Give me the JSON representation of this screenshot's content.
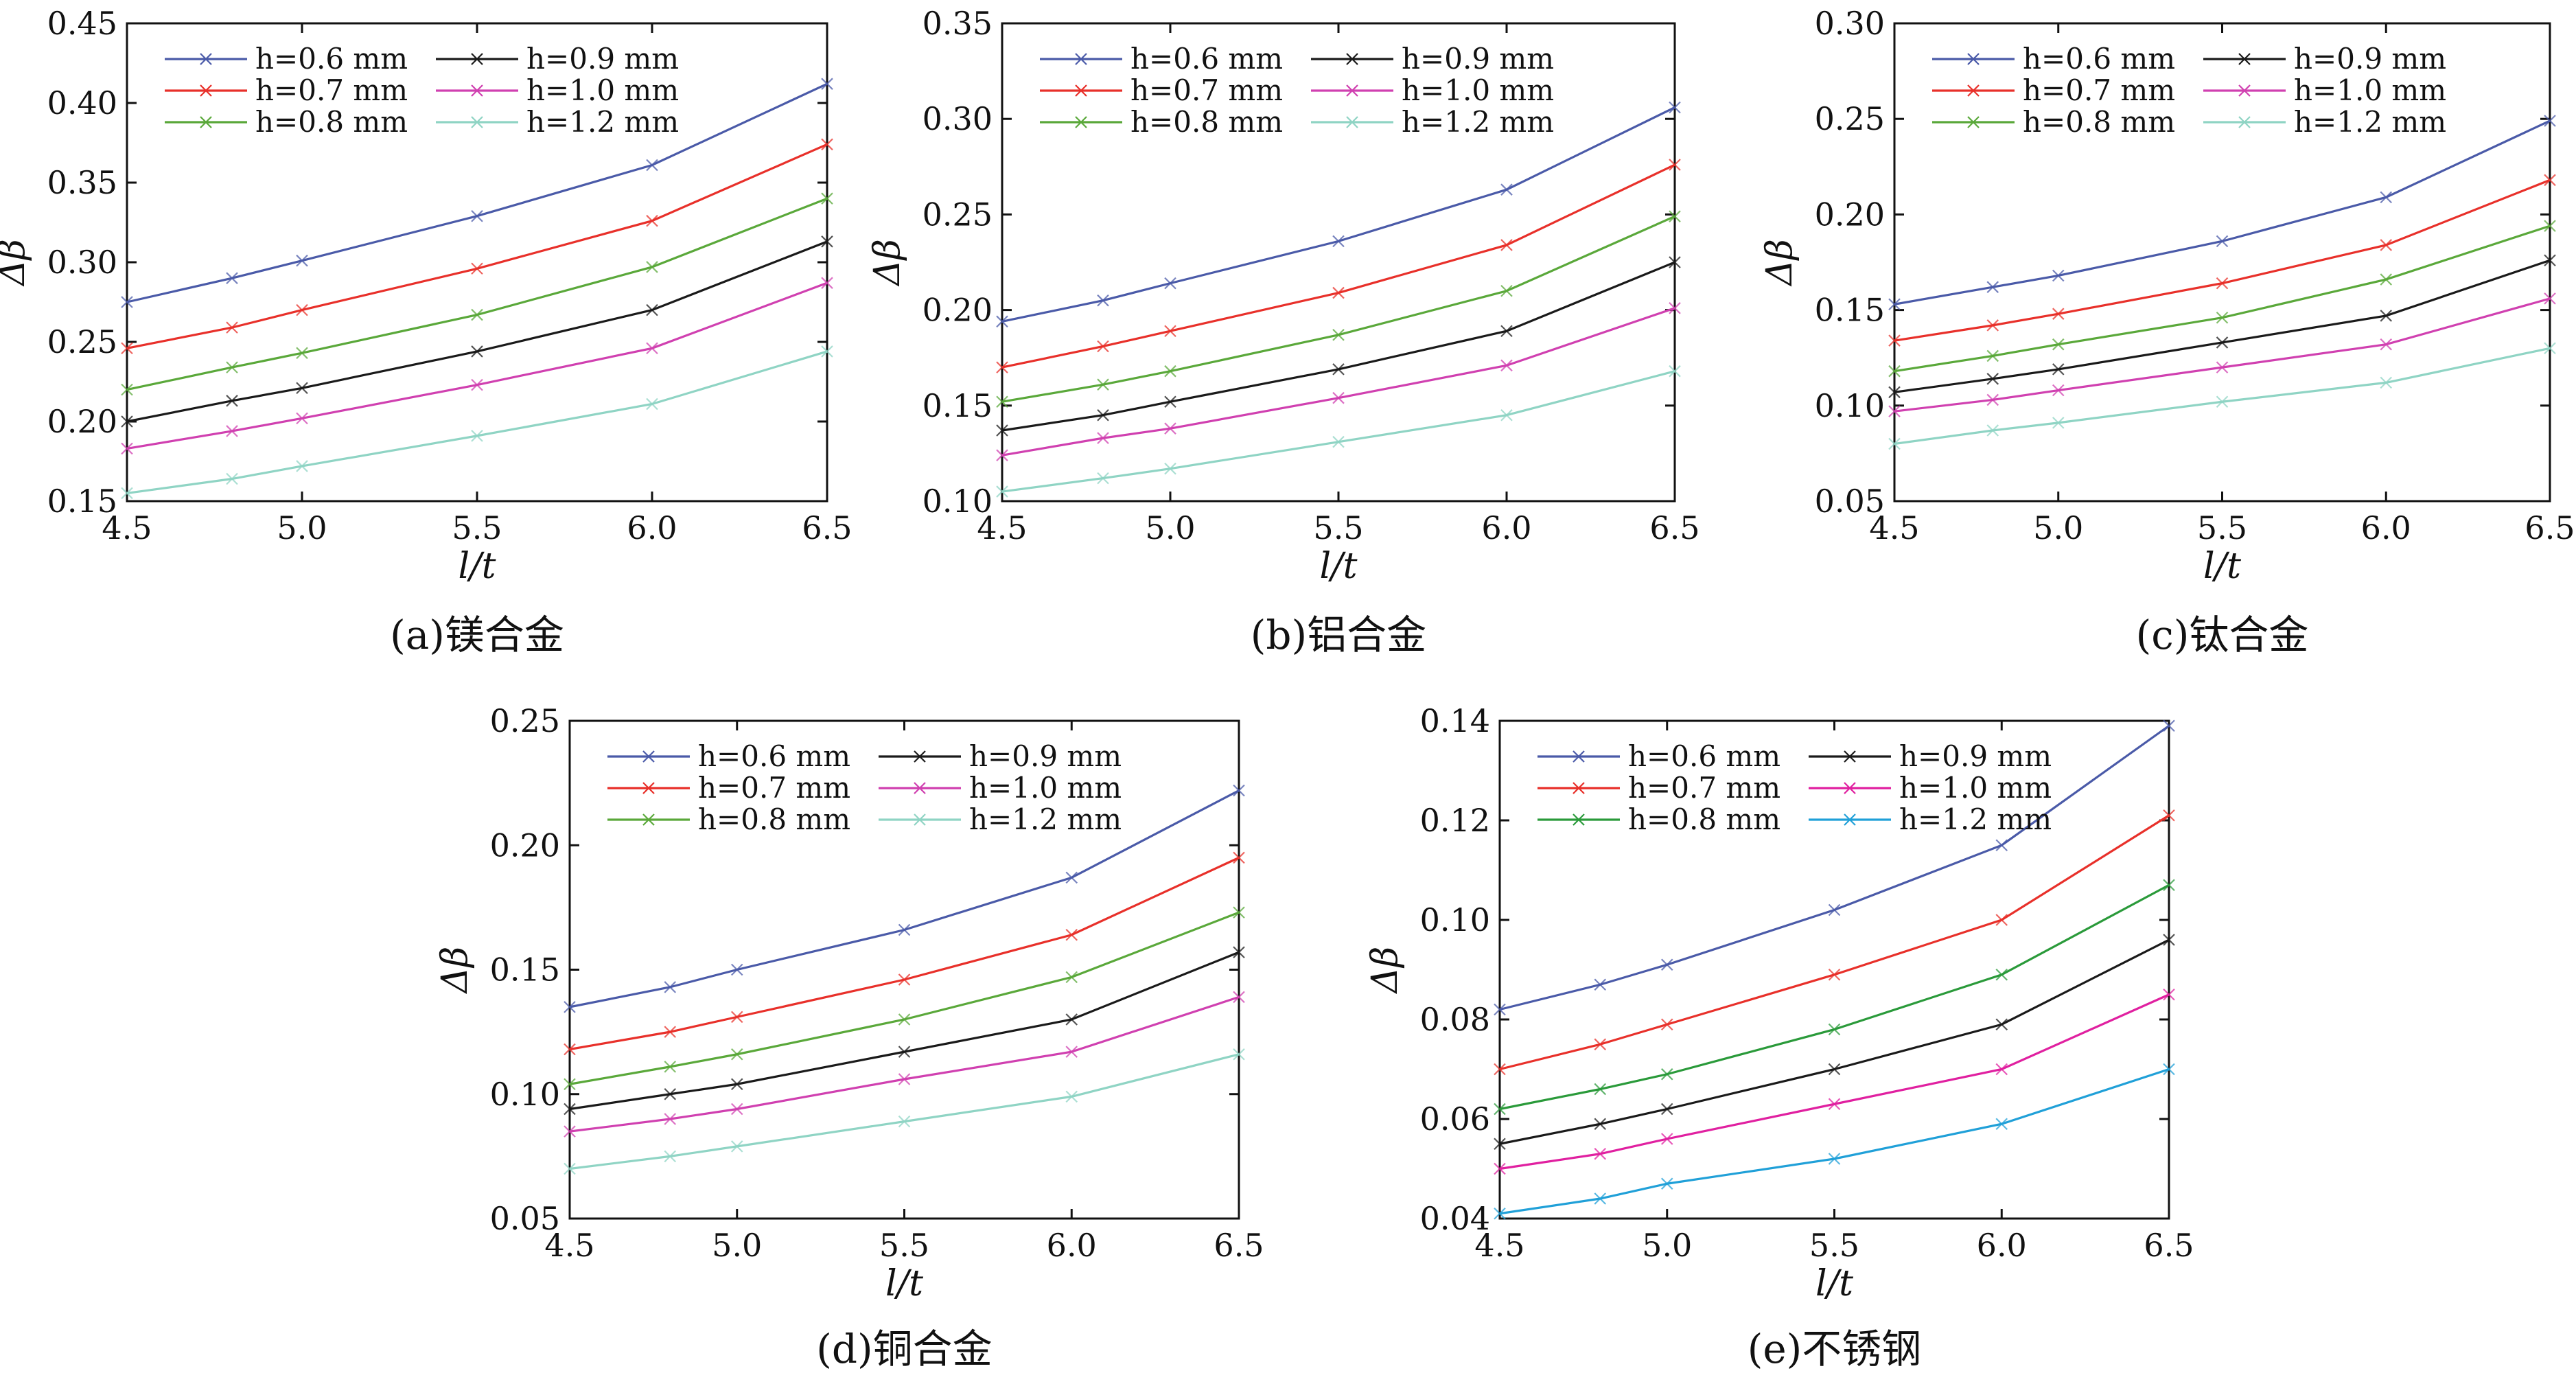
{
  "chart_data": [
    {
      "type": "line",
      "caption": "(a)镁合金",
      "xlabel": "l/t",
      "ylabel": "Δβ",
      "xlim": [
        4.5,
        6.5
      ],
      "ylim": [
        0.15,
        0.45
      ],
      "xticks": [
        "4.5",
        "5.0",
        "5.5",
        "6.0",
        "6.5"
      ],
      "yticks": [
        "0.15",
        "0.20",
        "0.25",
        "0.30",
        "0.35",
        "0.40",
        "0.45"
      ],
      "legend_position": "top-left",
      "x": [
        4.5,
        4.8,
        5.0,
        5.5,
        6.0,
        6.5
      ],
      "series": [
        {
          "name": "h=0.6 mm",
          "color": "#4a5aa8",
          "values": [
            0.275,
            0.29,
            0.301,
            0.329,
            0.361,
            0.412
          ]
        },
        {
          "name": "h=0.7 mm",
          "color": "#e8302a",
          "values": [
            0.246,
            0.259,
            0.27,
            0.296,
            0.326,
            0.374
          ]
        },
        {
          "name": "h=0.8 mm",
          "color": "#5aa83a",
          "values": [
            0.22,
            0.234,
            0.243,
            0.267,
            0.297,
            0.34
          ]
        },
        {
          "name": "h=0.9 mm",
          "color": "#1a1a1a",
          "values": [
            0.2,
            0.213,
            0.221,
            0.244,
            0.27,
            0.313
          ]
        },
        {
          "name": "h=1.0 mm",
          "color": "#d040b0",
          "values": [
            0.183,
            0.194,
            0.202,
            0.223,
            0.246,
            0.287
          ]
        },
        {
          "name": "h=1.2 mm",
          "color": "#8fd4c4",
          "values": [
            0.155,
            0.164,
            0.172,
            0.191,
            0.211,
            0.244
          ]
        }
      ]
    },
    {
      "type": "line",
      "caption": "(b)铝合金",
      "xlabel": "l/t",
      "ylabel": "Δβ",
      "xlim": [
        4.5,
        6.5
      ],
      "ylim": [
        0.1,
        0.35
      ],
      "xticks": [
        "4.5",
        "5.0",
        "5.5",
        "6.0",
        "6.5"
      ],
      "yticks": [
        "0.10",
        "0.15",
        "0.20",
        "0.25",
        "0.30",
        "0.35"
      ],
      "legend_position": "top-left",
      "x": [
        4.5,
        4.8,
        5.0,
        5.5,
        6.0,
        6.5
      ],
      "series": [
        {
          "name": "h=0.6 mm",
          "color": "#4a5aa8",
          "values": [
            0.194,
            0.205,
            0.214,
            0.236,
            0.263,
            0.306
          ]
        },
        {
          "name": "h=0.7 mm",
          "color": "#e8302a",
          "values": [
            0.17,
            0.181,
            0.189,
            0.209,
            0.234,
            0.276
          ]
        },
        {
          "name": "h=0.8 mm",
          "color": "#5aa83a",
          "values": [
            0.152,
            0.161,
            0.168,
            0.187,
            0.21,
            0.249
          ]
        },
        {
          "name": "h=0.9 mm",
          "color": "#1a1a1a",
          "values": [
            0.137,
            0.145,
            0.152,
            0.169,
            0.189,
            0.225
          ]
        },
        {
          "name": "h=1.0 mm",
          "color": "#d040b0",
          "values": [
            0.124,
            0.133,
            0.138,
            0.154,
            0.171,
            0.201
          ]
        },
        {
          "name": "h=1.2 mm",
          "color": "#8fd4c4",
          "values": [
            0.105,
            0.112,
            0.117,
            0.131,
            0.145,
            0.168
          ]
        }
      ]
    },
    {
      "type": "line",
      "caption": "(c)钛合金",
      "xlabel": "l/t",
      "ylabel": "Δβ",
      "xlim": [
        4.5,
        6.5
      ],
      "ylim": [
        0.05,
        0.3
      ],
      "xticks": [
        "4.5",
        "5.0",
        "5.5",
        "6.0",
        "6.5"
      ],
      "yticks": [
        "0.05",
        "0.10",
        "0.15",
        "0.20",
        "0.25",
        "0.30"
      ],
      "legend_position": "top-left",
      "x": [
        4.5,
        4.8,
        5.0,
        5.5,
        6.0,
        6.5
      ],
      "series": [
        {
          "name": "h=0.6 mm",
          "color": "#4a5aa8",
          "values": [
            0.153,
            0.162,
            0.168,
            0.186,
            0.209,
            0.249
          ]
        },
        {
          "name": "h=0.7 mm",
          "color": "#e8302a",
          "values": [
            0.134,
            0.142,
            0.148,
            0.164,
            0.184,
            0.218
          ]
        },
        {
          "name": "h=0.8 mm",
          "color": "#5aa83a",
          "values": [
            0.118,
            0.126,
            0.132,
            0.146,
            0.166,
            0.194
          ]
        },
        {
          "name": "h=0.9 mm",
          "color": "#1a1a1a",
          "values": [
            0.107,
            0.114,
            0.119,
            0.133,
            0.147,
            0.176
          ]
        },
        {
          "name": "h=1.0 mm",
          "color": "#d040b0",
          "values": [
            0.097,
            0.103,
            0.108,
            0.12,
            0.132,
            0.156
          ]
        },
        {
          "name": "h=1.2 mm",
          "color": "#8fd4c4",
          "values": [
            0.08,
            0.087,
            0.091,
            0.102,
            0.112,
            0.13
          ]
        }
      ]
    },
    {
      "type": "line",
      "caption": "(d)铜合金",
      "xlabel": "l/t",
      "ylabel": "Δβ",
      "xlim": [
        4.5,
        6.5
      ],
      "ylim": [
        0.05,
        0.25
      ],
      "xticks": [
        "4.5",
        "5.0",
        "5.5",
        "6.0",
        "6.5"
      ],
      "yticks": [
        "0.05",
        "0.10",
        "0.15",
        "0.20",
        "0.25"
      ],
      "legend_position": "top-left",
      "x": [
        4.5,
        4.8,
        5.0,
        5.5,
        6.0,
        6.5
      ],
      "series": [
        {
          "name": "h=0.6 mm",
          "color": "#4a5aa8",
          "values": [
            0.135,
            0.143,
            0.15,
            0.166,
            0.187,
            0.222
          ]
        },
        {
          "name": "h=0.7 mm",
          "color": "#e8302a",
          "values": [
            0.118,
            0.125,
            0.131,
            0.146,
            0.164,
            0.195
          ]
        },
        {
          "name": "h=0.8 mm",
          "color": "#5aa83a",
          "values": [
            0.104,
            0.111,
            0.116,
            0.13,
            0.147,
            0.173
          ]
        },
        {
          "name": "h=0.9 mm",
          "color": "#1a1a1a",
          "values": [
            0.094,
            0.1,
            0.104,
            0.117,
            0.13,
            0.157
          ]
        },
        {
          "name": "h=1.0 mm",
          "color": "#d040b0",
          "values": [
            0.085,
            0.09,
            0.094,
            0.106,
            0.117,
            0.139
          ]
        },
        {
          "name": "h=1.2 mm",
          "color": "#8fd4c4",
          "values": [
            0.07,
            0.075,
            0.079,
            0.089,
            0.099,
            0.116
          ]
        }
      ]
    },
    {
      "type": "line",
      "caption": "(e)不锈钢",
      "xlabel": "l/t",
      "ylabel": "Δβ",
      "xlim": [
        4.5,
        6.5
      ],
      "ylim": [
        0.04,
        0.14
      ],
      "xticks": [
        "4.5",
        "5.0",
        "5.5",
        "6.0",
        "6.5"
      ],
      "yticks": [
        "0.04",
        "0.06",
        "0.08",
        "0.10",
        "0.12",
        "0.14"
      ],
      "legend_position": "top-left",
      "x": [
        4.5,
        4.8,
        5.0,
        5.5,
        6.0,
        6.5
      ],
      "series": [
        {
          "name": "h=0.6 mm",
          "color": "#4a5aa8",
          "values": [
            0.082,
            0.087,
            0.091,
            0.102,
            0.115,
            0.139
          ]
        },
        {
          "name": "h=0.7 mm",
          "color": "#e8302a",
          "values": [
            0.07,
            0.075,
            0.079,
            0.089,
            0.1,
            0.121
          ]
        },
        {
          "name": "h=0.8 mm",
          "color": "#2a9a3a",
          "values": [
            0.062,
            0.066,
            0.069,
            0.078,
            0.089,
            0.107
          ]
        },
        {
          "name": "h=0.9 mm",
          "color": "#1a1a1a",
          "values": [
            0.055,
            0.059,
            0.062,
            0.07,
            0.079,
            0.096
          ]
        },
        {
          "name": "h=1.0 mm",
          "color": "#e020a0",
          "values": [
            0.05,
            0.053,
            0.056,
            0.063,
            0.07,
            0.085
          ]
        },
        {
          "name": "h=1.2 mm",
          "color": "#20a0d8",
          "values": [
            0.041,
            0.044,
            0.047,
            0.052,
            0.059,
            0.07
          ]
        }
      ]
    }
  ]
}
